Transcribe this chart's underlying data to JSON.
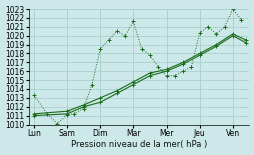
{
  "xlabel": "Pression niveau de la mer( hPa )",
  "bg_color": "#cce8e8",
  "grid_color": "#aad0d0",
  "line_color": "#1a6b1a",
  "ylim": [
    1010,
    1023
  ],
  "yticks": [
    1010,
    1011,
    1012,
    1013,
    1014,
    1015,
    1016,
    1017,
    1018,
    1019,
    1020,
    1021,
    1022,
    1023
  ],
  "days": [
    "Lun",
    "Sam",
    "Dim",
    "Mar",
    "Mer",
    "Jeu",
    "Ven"
  ],
  "xlim": [
    -0.15,
    6.5
  ],
  "series1_x": [
    0.0,
    0.4,
    0.7,
    1.0,
    1.2,
    1.5,
    1.75,
    2.0,
    2.25,
    2.5,
    2.75,
    3.0,
    3.25,
    3.5,
    3.75,
    4.0,
    4.25,
    4.5,
    4.75,
    5.0,
    5.25,
    5.5,
    5.75,
    6.0,
    6.25
  ],
  "series1_y": [
    1013.3,
    1011.2,
    1010.1,
    1011.1,
    1011.2,
    1011.8,
    1014.5,
    1018.5,
    1019.5,
    1020.5,
    1020.0,
    1021.6,
    1018.5,
    1017.8,
    1016.5,
    1015.5,
    1015.5,
    1016.0,
    1016.5,
    1020.3,
    1021.0,
    1020.2,
    1021.0,
    1023.0,
    1021.8
  ],
  "series2_x": [
    0.0,
    1.0,
    1.5,
    2.0,
    2.5,
    3.0,
    3.5,
    4.0,
    4.5,
    5.0,
    5.5,
    6.0,
    6.4
  ],
  "series2_y": [
    1011.0,
    1011.2,
    1012.0,
    1012.5,
    1013.5,
    1014.5,
    1015.5,
    1016.0,
    1016.8,
    1017.8,
    1018.8,
    1020.0,
    1019.2
  ],
  "series3_x": [
    0.0,
    1.0,
    1.5,
    2.0,
    2.5,
    3.0,
    3.5,
    4.0,
    4.5,
    5.0,
    5.5,
    6.0,
    6.4
  ],
  "series3_y": [
    1011.2,
    1011.5,
    1012.2,
    1013.0,
    1013.8,
    1014.8,
    1015.8,
    1016.2,
    1017.0,
    1018.0,
    1019.0,
    1020.2,
    1019.5
  ]
}
